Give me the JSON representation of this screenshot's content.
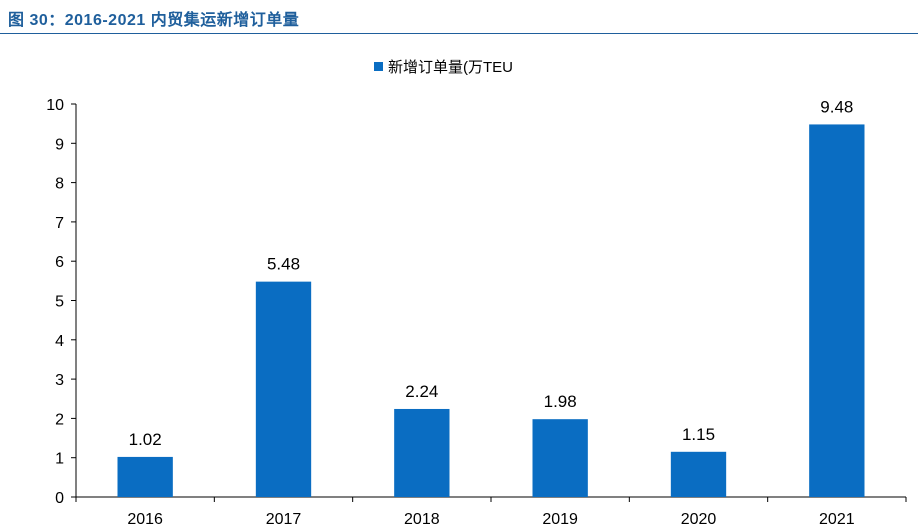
{
  "figure_title": "图 30：2016-2021 内贸集运新增订单量",
  "colors": {
    "bar": "#0a6dc2",
    "title": "#1f5f9c",
    "axis": "#000000"
  },
  "chart_data": {
    "type": "bar",
    "title": "",
    "xlabel": "",
    "ylabel": "",
    "categories": [
      "2016",
      "2017",
      "2018",
      "2019",
      "2020",
      "2021"
    ],
    "series": [
      {
        "name": "新增订单量(万TEU",
        "values": [
          1.02,
          5.48,
          2.24,
          1.98,
          1.15,
          9.48
        ]
      }
    ],
    "data_labels": [
      "1.02",
      "5.48",
      "2.24",
      "1.98",
      "1.15",
      "9.48"
    ],
    "ylim": [
      0,
      10
    ],
    "yticks": [
      "0",
      "1",
      "2",
      "3",
      "4",
      "5",
      "6",
      "7",
      "8",
      "9",
      "10"
    ],
    "legend_position": "top-center",
    "grid": false
  }
}
